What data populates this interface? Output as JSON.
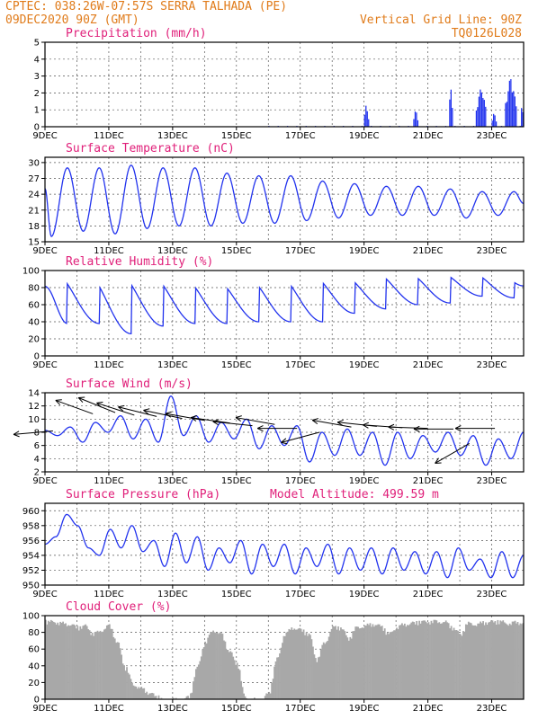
{
  "header": {
    "station_line": "CPTEC:   038:26W-07:57S  SERRA TALHADA (PE)",
    "date_line": "09DEC2020 90Z (GMT)",
    "grid_line": "Vertical Grid Line: 90Z",
    "code_line": "TQ0126L028"
  },
  "colors": {
    "header": "#e07b1a",
    "title": "#e0207a",
    "series": "#2233ee",
    "cloud": "#a8a8a8",
    "arrow": "#000000"
  },
  "chart_data": [
    {
      "type": "bar",
      "title": "Precipitation (mm/h)",
      "x_tick_labels": [
        "9DEC",
        "11DEC",
        "13DEC",
        "15DEC",
        "17DEC",
        "19DEC",
        "21DEC",
        "23DEC"
      ],
      "ylim": [
        0,
        5
      ],
      "y_ticks": [
        0,
        1,
        2,
        3,
        4,
        5
      ],
      "x_days": [
        0,
        15
      ],
      "events": [
        {
          "start": 10.0,
          "end": 10.15,
          "peak": 1.4
        },
        {
          "start": 11.55,
          "end": 11.7,
          "peak": 1.1
        },
        {
          "start": 12.65,
          "end": 12.8,
          "peak": 2.4
        },
        {
          "start": 13.5,
          "end": 13.85,
          "peak": 2.5
        },
        {
          "start": 14.0,
          "end": 14.15,
          "peak": 0.9
        },
        {
          "start": 14.4,
          "end": 14.8,
          "peak": 3.1
        },
        {
          "start": 14.9,
          "end": 15.0,
          "peak": 1.6
        }
      ],
      "background_rate": 0.05
    },
    {
      "type": "line",
      "title": "Surface Temperature (nC)",
      "x_tick_labels": [
        "9DEC",
        "11DEC",
        "13DEC",
        "15DEC",
        "17DEC",
        "19DEC",
        "21DEC",
        "23DEC"
      ],
      "ylim": [
        15,
        31
      ],
      "y_ticks": [
        15,
        18,
        21,
        24,
        27,
        30
      ],
      "daily_max": [
        29,
        29,
        29.5,
        29,
        29,
        28,
        27.5,
        27.5,
        26.5,
        26,
        25.5,
        25.5,
        25,
        24.5,
        24.5
      ],
      "daily_min": [
        16,
        17,
        16.5,
        17.5,
        18,
        18,
        18.5,
        18.5,
        19,
        19.5,
        20,
        20,
        20,
        19.5,
        20
      ]
    },
    {
      "type": "line",
      "title": "Relative Humidity (%)",
      "x_tick_labels": [
        "9DEC",
        "11DEC",
        "13DEC",
        "15DEC",
        "17DEC",
        "19DEC",
        "21DEC",
        "23DEC"
      ],
      "ylim": [
        0,
        100
      ],
      "y_ticks": [
        0,
        20,
        40,
        60,
        80,
        100
      ],
      "daily_max": [
        100,
        100,
        100,
        98,
        95,
        93,
        95,
        97,
        98,
        97,
        100,
        100,
        100,
        100,
        96
      ],
      "daily_min": [
        38,
        38,
        26,
        35,
        38,
        38,
        40,
        40,
        40,
        50,
        55,
        60,
        62,
        70,
        68
      ]
    },
    {
      "type": "line",
      "title": "Surface Wind (m/s)",
      "x_tick_labels": [
        "9DEC",
        "11DEC",
        "13DEC",
        "15DEC",
        "17DEC",
        "19DEC",
        "21DEC",
        "23DEC"
      ],
      "ylim": [
        2,
        14
      ],
      "y_ticks": [
        2,
        4,
        6,
        8,
        10,
        12,
        14
      ],
      "speed": [
        8.3,
        7.5,
        8.8,
        6.5,
        9.5,
        8,
        10.5,
        7,
        10,
        6.5,
        13.5,
        7.5,
        10.5,
        6.5,
        9.5,
        7,
        10,
        5.5,
        9,
        6,
        9,
        3.5,
        8,
        4.5,
        8.5,
        4.5,
        8,
        3,
        8,
        4,
        7.5,
        5,
        8,
        4.5,
        7.5,
        3,
        7,
        4,
        8
      ],
      "arrows": [
        {
          "day": 0.25,
          "speed": 8.2,
          "angle_deg": 5
        },
        {
          "day": 1.5,
          "speed": 10.8,
          "angle_deg": -20
        },
        {
          "day": 2.2,
          "speed": 11.0,
          "angle_deg": -22
        },
        {
          "day": 2.8,
          "speed": 10.6,
          "angle_deg": -18
        },
        {
          "day": 3.5,
          "speed": 10.4,
          "angle_deg": -14
        },
        {
          "day": 4.3,
          "speed": 10.1,
          "angle_deg": -12
        },
        {
          "day": 5.0,
          "speed": 9.8,
          "angle_deg": -10
        },
        {
          "day": 5.8,
          "speed": 9.4,
          "angle_deg": -8
        },
        {
          "day": 6.5,
          "speed": 9.0,
          "angle_deg": -6
        },
        {
          "day": 7.2,
          "speed": 9.2,
          "angle_deg": -10
        },
        {
          "day": 7.9,
          "speed": 8.6,
          "angle_deg": 0
        },
        {
          "day": 8.6,
          "speed": 8.0,
          "angle_deg": 15
        },
        {
          "day": 9.6,
          "speed": 8.8,
          "angle_deg": -10
        },
        {
          "day": 10.4,
          "speed": 8.9,
          "angle_deg": -6
        },
        {
          "day": 11.2,
          "speed": 8.7,
          "angle_deg": -4
        },
        {
          "day": 12.0,
          "speed": 8.6,
          "angle_deg": -2
        },
        {
          "day": 12.8,
          "speed": 8.5,
          "angle_deg": 0
        },
        {
          "day": 13.3,
          "speed": 6.3,
          "angle_deg": 30
        },
        {
          "day": 14.1,
          "speed": 8.6,
          "angle_deg": 0
        }
      ]
    },
    {
      "type": "line",
      "title": "Surface Pressure (hPa)",
      "annotation": "Model Altitude: 499.59 m",
      "x_tick_labels": [
        "9DEC",
        "11DEC",
        "13DEC",
        "15DEC",
        "17DEC",
        "19DEC",
        "21DEC",
        "23DEC"
      ],
      "ylim": [
        950,
        961
      ],
      "y_ticks": [
        950,
        952,
        954,
        956,
        958,
        960
      ],
      "values": [
        955.5,
        956.5,
        959.5,
        958.0,
        955.0,
        954.0,
        957.5,
        955.0,
        958.0,
        954.5,
        956.0,
        952.5,
        957.0,
        953.0,
        956.5,
        952.0,
        955.0,
        953.0,
        956.0,
        951.5,
        955.5,
        952.5,
        955.5,
        951.5,
        955.0,
        952.5,
        955.5,
        951.5,
        955.0,
        952.0,
        955.0,
        951.5,
        955.0,
        952.0,
        954.5,
        951.5,
        954.5,
        951.0,
        955.0,
        952.0,
        953.5,
        951.0,
        954.5,
        951.0,
        954.0
      ]
    },
    {
      "type": "area",
      "title": "Cloud Cover (%)",
      "x_tick_labels": [
        "9DEC",
        "11DEC",
        "13DEC",
        "15DEC",
        "17DEC",
        "19DEC",
        "21DEC",
        "23DEC"
      ],
      "ylim": [
        0,
        100
      ],
      "y_ticks": [
        0,
        20,
        40,
        60,
        80,
        100
      ],
      "values": [
        95,
        95,
        93,
        92,
        88,
        90,
        80,
        85,
        90,
        70,
        40,
        20,
        15,
        10,
        5,
        0,
        2,
        0,
        5,
        40,
        70,
        85,
        80,
        60,
        45,
        5,
        2,
        0,
        10,
        50,
        80,
        88,
        85,
        80,
        50,
        70,
        88,
        88,
        75,
        88,
        90,
        92,
        90,
        80,
        88,
        92,
        93,
        95,
        95,
        95,
        95,
        88,
        80,
        93,
        92,
        94,
        95,
        95,
        93,
        94,
        94
      ]
    }
  ]
}
